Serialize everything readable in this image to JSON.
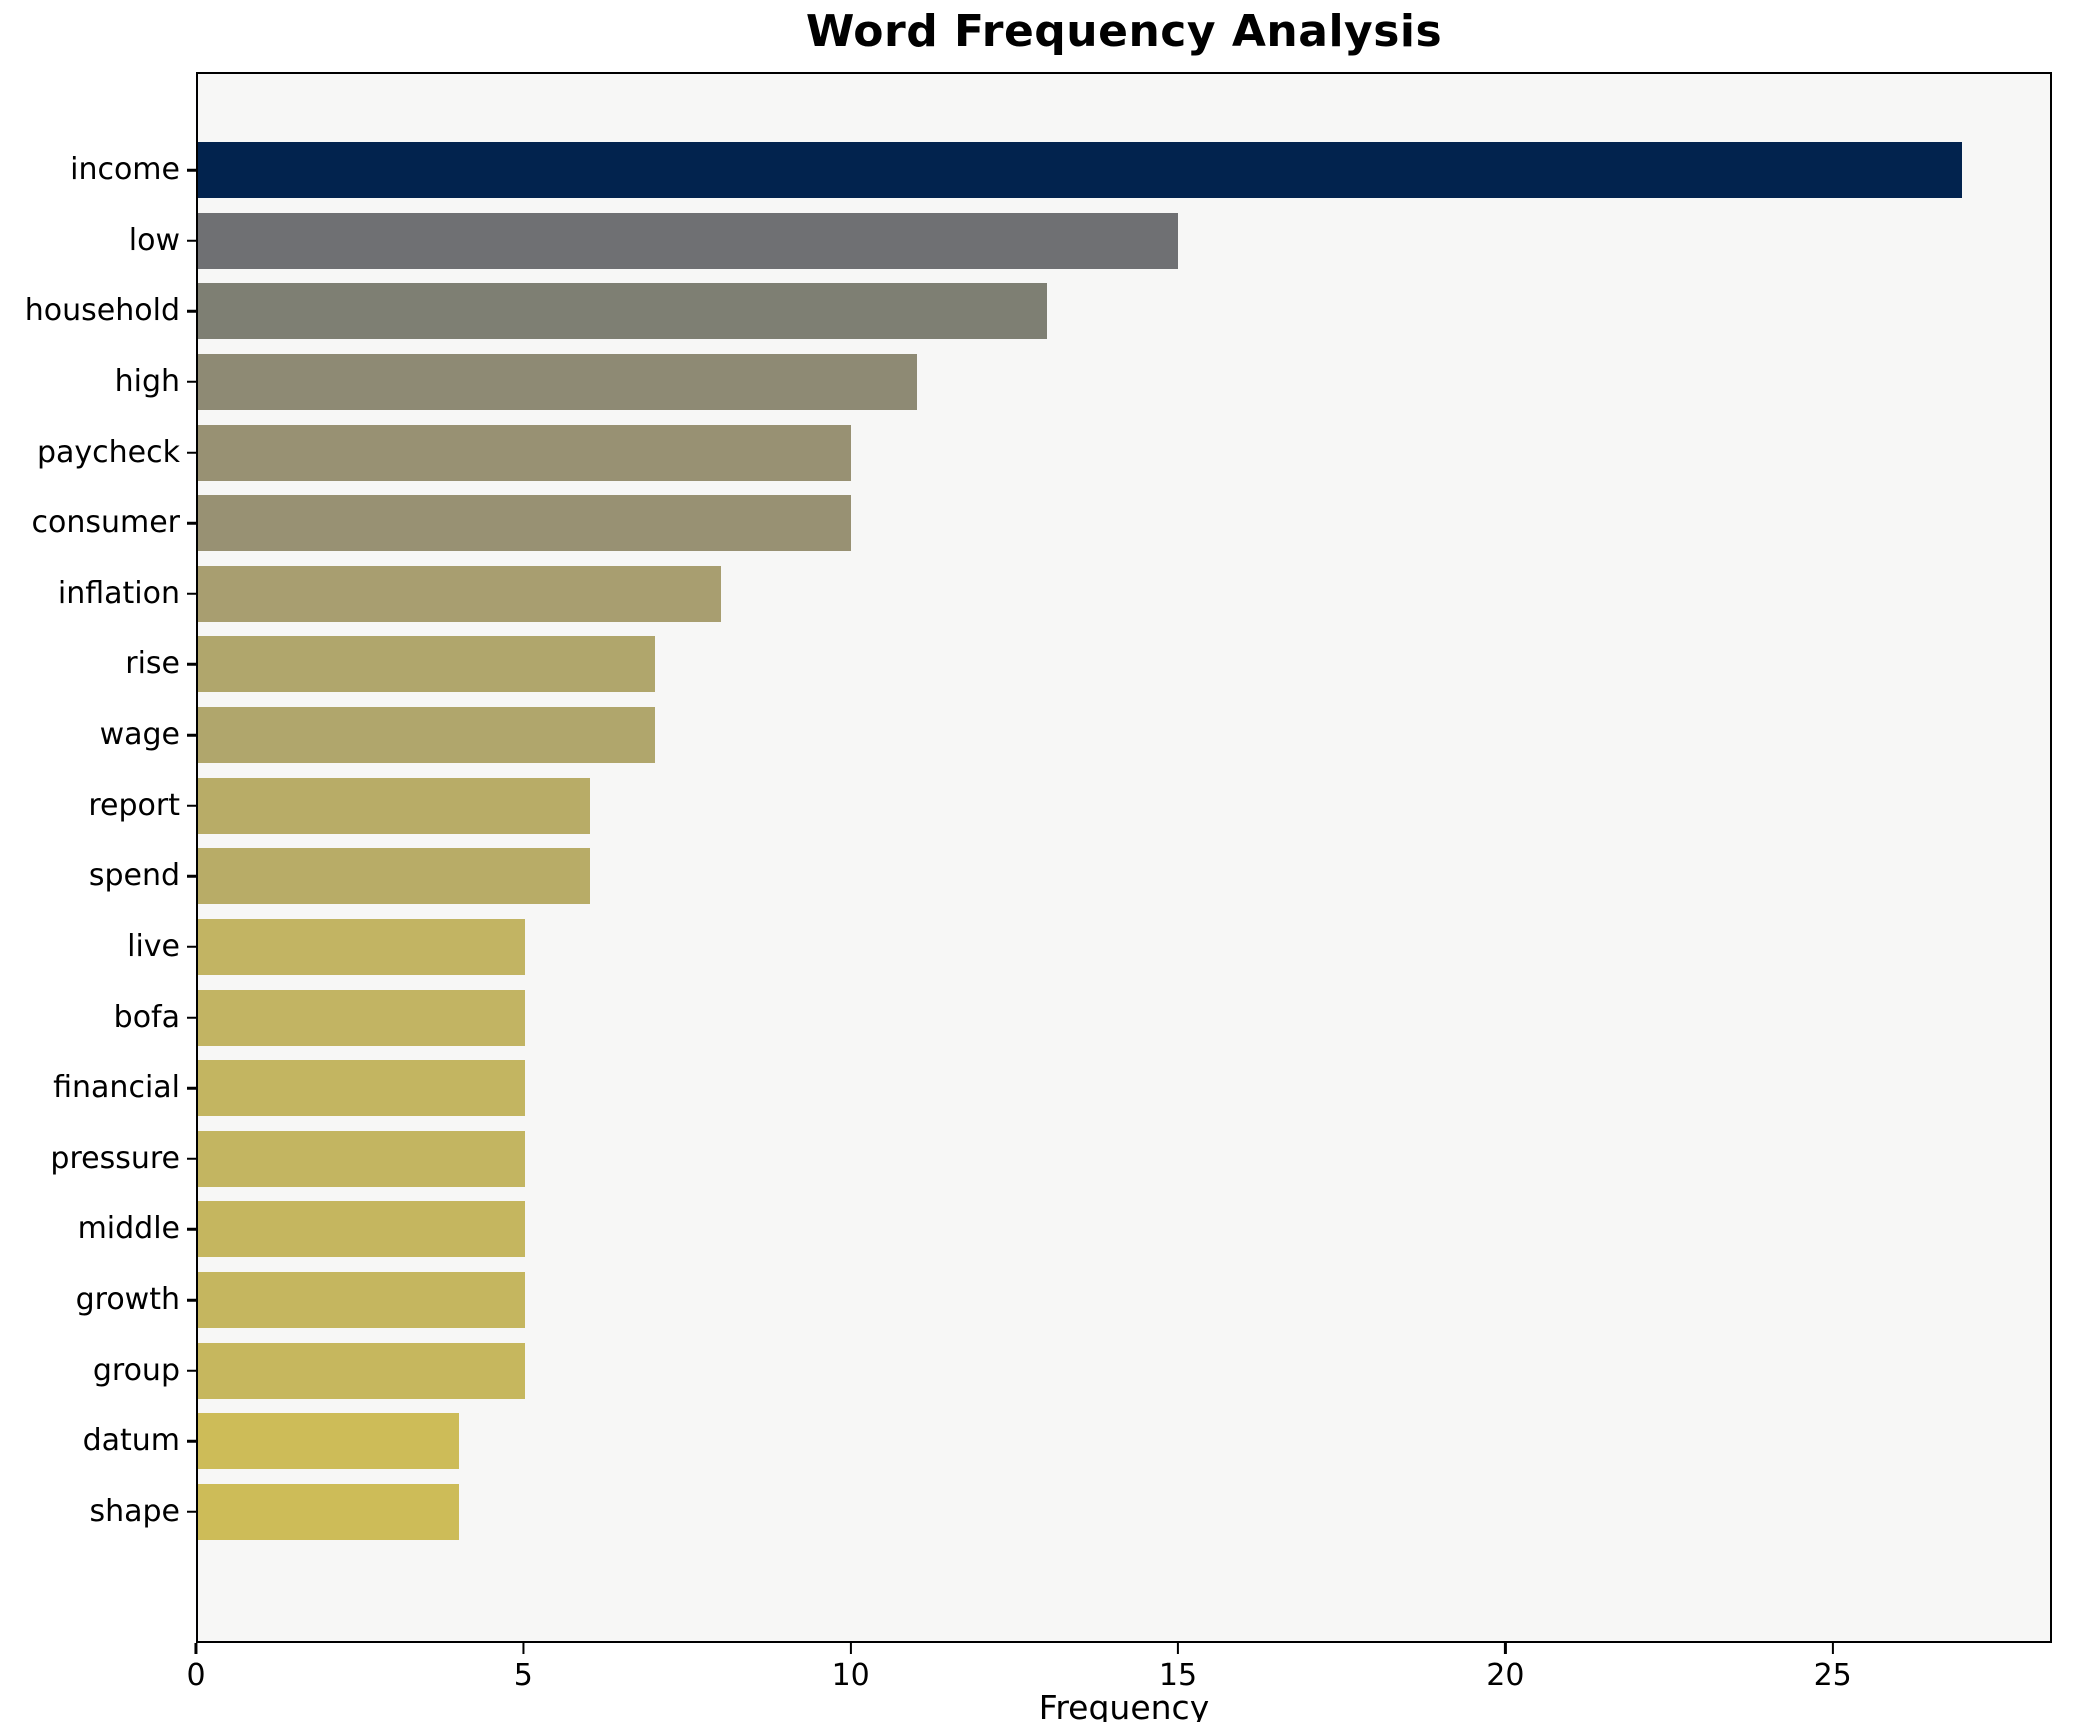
{
  "title": "Word Frequency Analysis",
  "chart_data": {
    "type": "bar",
    "orientation": "horizontal",
    "title": "Word Frequency Analysis",
    "xlabel": "Frequency",
    "ylabel": "",
    "xlim": [
      0,
      28.35
    ],
    "x_ticks": [
      0,
      5,
      10,
      15,
      20,
      25
    ],
    "grid": false,
    "legend": false,
    "plot_background": "#f7f7f6",
    "figure_background": "#ffffff",
    "spine_color": "#000000",
    "categories": [
      "income",
      "low",
      "household",
      "high",
      "paycheck",
      "consumer",
      "inflation",
      "rise",
      "wage",
      "report",
      "spend",
      "live",
      "bofa",
      "financial",
      "pressure",
      "middle",
      "growth",
      "group",
      "datum",
      "shape"
    ],
    "values": [
      27,
      15,
      13,
      11,
      10,
      10,
      8,
      7,
      7,
      6,
      6,
      5,
      5,
      5,
      5,
      5,
      5,
      5,
      4,
      4
    ],
    "bar_colors": [
      "#02234e",
      "#6f7073",
      "#7e7f73",
      "#8e8a74",
      "#989173",
      "#989173",
      "#a89e70",
      "#b0a66c",
      "#b0a66c",
      "#b8ac67",
      "#b8ac67",
      "#c2b463",
      "#c2b463",
      "#c3b561",
      "#c3b561",
      "#c5b65f",
      "#c5b65f",
      "#c6b75e",
      "#cdbc58",
      "#cdbc58"
    ]
  }
}
